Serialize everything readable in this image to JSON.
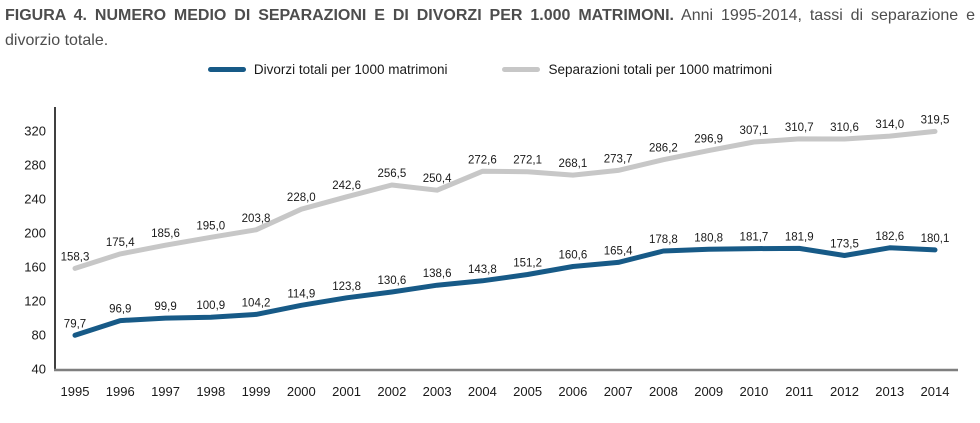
{
  "title": {
    "bold": "FIGURA 4. NUMERO MEDIO DI SEPARAZIONI E DI DIVORZI PER 1.000 MATRIMONI.",
    "normal": " Anni 1995-2014, tassi di separazione e divorzio totale."
  },
  "legend": [
    {
      "label": "Divorzi totali per 1000 matrimoni",
      "color": "#175a87"
    },
    {
      "label": "Separazioni totali per 1000 matrimoni",
      "color": "#c7c7c7"
    }
  ],
  "chart_data": {
    "type": "line",
    "title": "FIGURA 4. NUMERO MEDIO DI SEPARAZIONI E DI DIVORZI PER 1.000 MATRIMONI. Anni 1995-2014, tassi di separazione e divorzio totale.",
    "x": [
      1995,
      1996,
      1997,
      1998,
      1999,
      2000,
      2001,
      2002,
      2003,
      2004,
      2005,
      2006,
      2007,
      2008,
      2009,
      2010,
      2011,
      2012,
      2013,
      2014
    ],
    "series": [
      {
        "name": "Divorzi totali per 1000 matrimoni",
        "color": "#175a87",
        "values": [
          79.7,
          96.9,
          99.9,
          100.9,
          104.2,
          114.9,
          123.8,
          130.6,
          138.6,
          143.8,
          151.2,
          160.6,
          165.4,
          178.8,
          180.8,
          181.7,
          181.9,
          173.5,
          182.6,
          180.1
        ]
      },
      {
        "name": "Separazioni totali per 1000 matrimoni",
        "color": "#c7c7c7",
        "values": [
          158.3,
          175.4,
          185.6,
          195.0,
          203.8,
          228.0,
          242.6,
          256.5,
          250.4,
          272.6,
          272.1,
          268.1,
          273.7,
          286.2,
          296.9,
          307.1,
          310.7,
          310.6,
          314.0,
          319.5
        ]
      }
    ],
    "yticks": [
      40,
      80,
      120,
      160,
      200,
      240,
      280,
      320
    ],
    "ylim": [
      40,
      340
    ],
    "grid": false,
    "legend_position": "top",
    "data_labels": true,
    "label_decimal": "comma",
    "xlabel": "",
    "ylabel": ""
  },
  "colors": {
    "title_text": "#4d4d4d",
    "axis_text": "#1a1a1a",
    "y_axis_line": "#404040",
    "x_axis_line": "#7f7f7f"
  }
}
